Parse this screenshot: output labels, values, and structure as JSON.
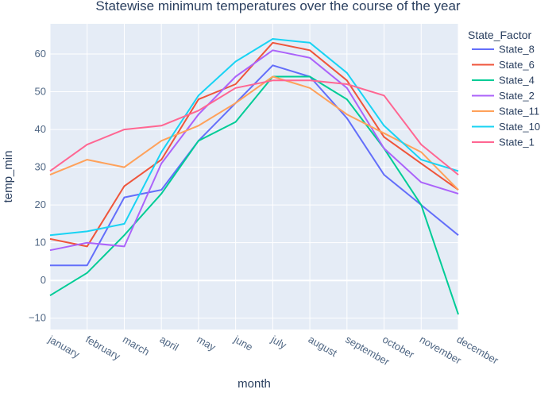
{
  "chart_data": {
    "type": "line",
    "title": "Statewise minimum temperatures over the course of the year",
    "xlabel": "month",
    "ylabel": "temp_min",
    "legend_title": "State_Factor",
    "legend_position": "right",
    "grid": true,
    "plot_background": "#e5ecf6",
    "ylim": [
      -13,
      68
    ],
    "yticks": [
      -10,
      0,
      10,
      20,
      30,
      40,
      50,
      60
    ],
    "categories": [
      "january",
      "february",
      "march",
      "april",
      "may",
      "june",
      "july",
      "august",
      "september",
      "october",
      "november",
      "december"
    ],
    "series": [
      {
        "name": "State_8",
        "color": "#636efa",
        "values": [
          4,
          4,
          22,
          24,
          37,
          47,
          57,
          54,
          43,
          28,
          20,
          12
        ]
      },
      {
        "name": "State_6",
        "color": "#ef553b",
        "values": [
          11,
          9,
          25,
          32,
          48,
          52,
          63,
          61,
          53,
          38,
          31,
          24
        ]
      },
      {
        "name": "State_4",
        "color": "#00cc96",
        "values": [
          -4,
          2,
          12,
          23,
          37,
          42,
          54,
          54,
          48,
          35,
          20,
          -9
        ]
      },
      {
        "name": "State_2",
        "color": "#ab63fa",
        "values": [
          8,
          10,
          9,
          31,
          44,
          54,
          61,
          59,
          51,
          35,
          26,
          23
        ]
      },
      {
        "name": "State_11",
        "color": "#ffa15a",
        "values": [
          28,
          32,
          30,
          37,
          41,
          47,
          54,
          51,
          44,
          39,
          34,
          24
        ]
      },
      {
        "name": "State_10",
        "color": "#19d3f3",
        "values": [
          12,
          13,
          15,
          34,
          49,
          58,
          64,
          63,
          55,
          41,
          32,
          29
        ]
      },
      {
        "name": "State_1",
        "color": "#ff6692",
        "values": [
          29,
          36,
          40,
          41,
          45,
          51,
          53,
          53,
          52,
          49,
          36,
          28
        ]
      }
    ]
  }
}
